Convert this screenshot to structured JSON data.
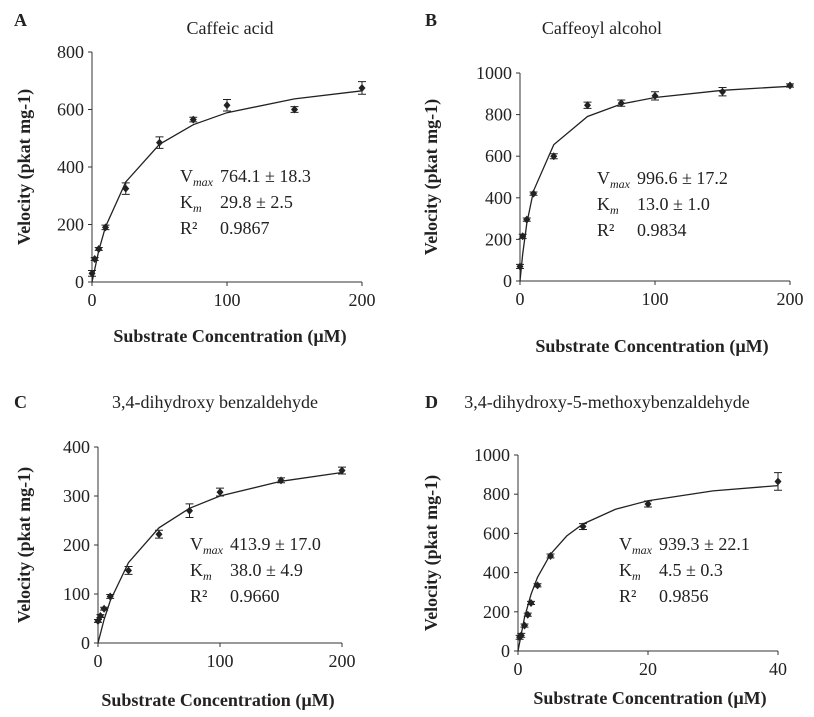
{
  "chart_data": [
    {
      "type": "scatter",
      "panel": "A",
      "title": "Caffeic acid",
      "x_label": "Substrate Concentration (µM)",
      "y_label": "Velocity (pkat mg-1)",
      "xlim": [
        0,
        200
      ],
      "xticks": [
        0,
        100,
        200
      ],
      "ylim": [
        0,
        800
      ],
      "yticks": [
        0,
        200,
        400,
        600,
        800
      ],
      "color": "#222222",
      "points": {
        "x": [
          0,
          2,
          5,
          10,
          25,
          50,
          75,
          100,
          150,
          200
        ],
        "y": [
          30,
          80,
          115,
          190,
          325,
          485,
          565,
          615,
          600,
          675
        ],
        "err": [
          10,
          5,
          5,
          8,
          20,
          20,
          8,
          20,
          10,
          22
        ]
      },
      "fit": {
        "x": [
          0,
          5,
          10,
          25,
          50,
          75,
          100,
          150,
          200
        ],
        "y": [
          0,
          110,
          192,
          348,
          479,
          547,
          589,
          637,
          665
        ]
      },
      "annotations": [
        {
          "symbol": "V",
          "sub": "max",
          "text": "764.1 ± 18.3"
        },
        {
          "symbol": "K",
          "sub": "m",
          "text": "29.8 ± 2.5"
        },
        {
          "symbol": "R²",
          "text": "0.9867"
        }
      ]
    },
    {
      "type": "scatter",
      "panel": "B",
      "title": "Caffeoyl alcohol",
      "x_label": "Substrate Concentration (µM)",
      "y_label": "Velocity (pkat mg-1)",
      "xlim": [
        0,
        200
      ],
      "xticks": [
        0,
        100,
        200
      ],
      "ylim": [
        0,
        1000
      ],
      "yticks": [
        0,
        200,
        400,
        600,
        800,
        1000
      ],
      "color": "#222222",
      "points": {
        "x": [
          0,
          2,
          5,
          10,
          25,
          50,
          75,
          100,
          150,
          200
        ],
        "y": [
          70,
          215,
          295,
          420,
          600,
          845,
          855,
          890,
          910,
          940
        ],
        "err": [
          10,
          10,
          8,
          8,
          12,
          15,
          15,
          20,
          20,
          8
        ]
      },
      "fit": {
        "x": [
          0,
          2,
          5,
          10,
          25,
          50,
          75,
          100,
          150,
          200
        ],
        "y": [
          0,
          130,
          277,
          433,
          656,
          791,
          851,
          882,
          917,
          936
        ]
      },
      "annotations": [
        {
          "symbol": "V",
          "sub": "max",
          "text": "996.6 ± 17.2"
        },
        {
          "symbol": "K",
          "sub": "m",
          "text": "13.0 ± 1.0"
        },
        {
          "symbol": "R²",
          "text": "0.9834"
        }
      ]
    },
    {
      "type": "scatter",
      "panel": "C",
      "title": "3,4-dihydroxy benzaldehyde",
      "x_label": "Substrate Concentration (µM)",
      "y_label": "Velocity (pkat mg-1)",
      "xlim": [
        0,
        200
      ],
      "xticks": [
        0,
        100,
        200
      ],
      "ylim": [
        0,
        400
      ],
      "yticks": [
        0,
        100,
        200,
        300,
        400
      ],
      "color": "#222222",
      "points": {
        "x": [
          0,
          2,
          5,
          10,
          25,
          50,
          75,
          100,
          150,
          200
        ],
        "y": [
          45,
          55,
          70,
          95,
          148,
          222,
          270,
          308,
          332,
          352
        ],
        "err": [
          3,
          3,
          3,
          4,
          8,
          8,
          14,
          8,
          5,
          7
        ]
      },
      "fit": {
        "x": [
          0,
          5,
          10,
          25,
          50,
          75,
          100,
          150,
          200
        ],
        "y": [
          0,
          48,
          86,
          164,
          235,
          275,
          300,
          330,
          348
        ]
      },
      "annotations": [
        {
          "symbol": "V",
          "sub": "max",
          "text": "413.9 ± 17.0"
        },
        {
          "symbol": "K",
          "sub": "m",
          "text": "38.0 ± 4.9"
        },
        {
          "symbol": "R²",
          "text": "0.9660"
        }
      ]
    },
    {
      "type": "scatter",
      "panel": "D",
      "title": "3,4-dihydroxy-5-methoxybenzaldehyde",
      "x_label": "Substrate Concentration (µM)",
      "y_label": "Velocity (pkat mg-1)",
      "xlim": [
        0,
        40
      ],
      "xticks": [
        0,
        20,
        40
      ],
      "ylim": [
        0,
        1000
      ],
      "yticks": [
        0,
        200,
        400,
        600,
        800,
        1000
      ],
      "color": "#222222",
      "points": {
        "x": [
          0.25,
          0.5,
          1,
          1.5,
          2,
          3,
          5,
          10,
          20,
          40
        ],
        "y": [
          70,
          80,
          130,
          185,
          245,
          335,
          485,
          635,
          750,
          865
        ],
        "err": [
          10,
          10,
          8,
          8,
          8,
          8,
          10,
          15,
          15,
          45
        ]
      },
      "fit": {
        "x": [
          0,
          1,
          2,
          3,
          5,
          7.5,
          10,
          15,
          20,
          30,
          40
        ],
        "y": [
          0,
          171,
          289,
          376,
          494,
          587,
          648,
          723,
          767,
          817,
          844
        ]
      },
      "annotations": [
        {
          "symbol": "V",
          "sub": "max",
          "text": "939.3 ± 22.1"
        },
        {
          "symbol": "K",
          "sub": "m",
          "text": "4.5 ± 0.3"
        },
        {
          "symbol": "R²",
          "text": "0.9856"
        }
      ]
    }
  ]
}
